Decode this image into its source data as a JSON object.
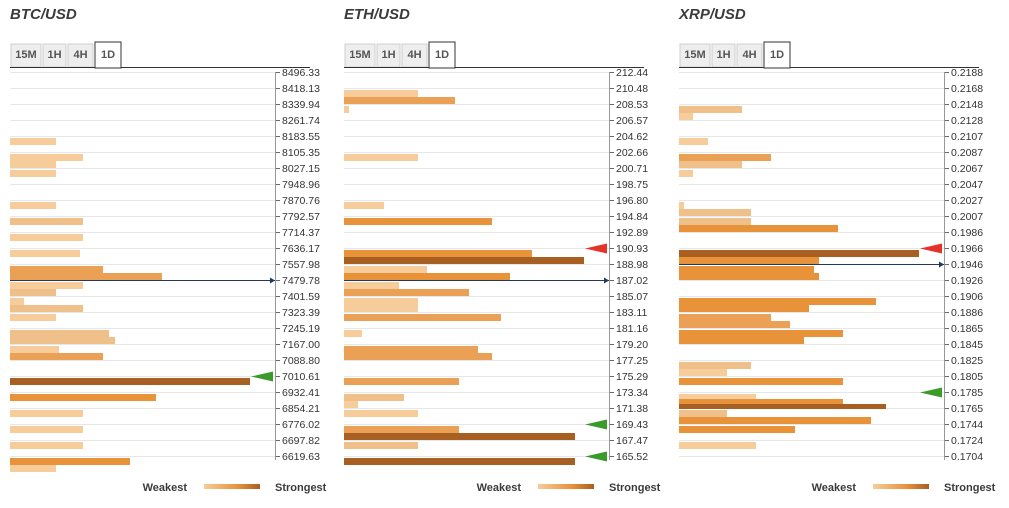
{
  "colors": {
    "weak": "#f5cc9a",
    "light": "#efc08a",
    "medium": "#eaa055",
    "strong": "#e8923a",
    "strongest": "#a85f22",
    "separator": "#e7e7e7",
    "price_line": "#1f3a5c",
    "red_marker": "#e5332a",
    "green_marker": "#3a9a2a"
  },
  "legend": {
    "weakest": "Weakest",
    "strongest": "Strongest"
  },
  "chart_data": [
    {
      "type": "bar",
      "title": "BTC/USD",
      "timeframes": [
        "15M",
        "1H",
        "4H",
        "1D"
      ],
      "active_timeframe": "1D",
      "levels": [
        "8496.33",
        "8418.13",
        "8339.94",
        "8261.74",
        "8183.55",
        "8105.35",
        "8027.15",
        "7948.96",
        "7870.76",
        "7792.57",
        "7714.37",
        "7636.17",
        "7557.98",
        "7479.78",
        "7401.59",
        "7323.39",
        "7245.19",
        "7167.00",
        "7088.80",
        "7010.61",
        "6932.41",
        "6854.21",
        "6776.02",
        "6697.82",
        "6619.63"
      ],
      "current_price_level": "7479.78",
      "markers": [
        {
          "level": "7010.61",
          "color": "green"
        }
      ],
      "bars": [
        {
          "level": "8183.55",
          "value": 46,
          "s": 1
        },
        {
          "level": "8105.35",
          "value": 73,
          "s": 1
        },
        {
          "level": "8105.35",
          "value": 46,
          "s": 1
        },
        {
          "level": "8027.15",
          "value": 46,
          "s": 1
        },
        {
          "level": "7870.76",
          "value": 46,
          "s": 1
        },
        {
          "level": "7792.57",
          "value": 73,
          "s": 2
        },
        {
          "level": "7714.37",
          "value": 73,
          "s": 1
        },
        {
          "level": "7636.17",
          "value": 70,
          "s": 1
        },
        {
          "level": "7557.98",
          "value": 93,
          "s": 3
        },
        {
          "level": "7557.98",
          "value": 152,
          "s": 3
        },
        {
          "level": "7479.78",
          "value": 73,
          "s": 1
        },
        {
          "level": "7479.78",
          "value": 46,
          "s": 2
        },
        {
          "level": "7401.59",
          "value": 14,
          "s": 1
        },
        {
          "level": "7401.59",
          "value": 73,
          "s": 2
        },
        {
          "level": "7323.39",
          "value": 46,
          "s": 1
        },
        {
          "level": "7245.19",
          "value": 99,
          "s": 2
        },
        {
          "level": "7245.19",
          "value": 105,
          "s": 2
        },
        {
          "level": "7167.00",
          "value": 49,
          "s": 1
        },
        {
          "level": "7167.00",
          "value": 93,
          "s": 3
        },
        {
          "level": "7010.61",
          "value": 240,
          "s": 5
        },
        {
          "level": "6932.41",
          "value": 146,
          "s": 4
        },
        {
          "level": "6854.21",
          "value": 73,
          "s": 1
        },
        {
          "level": "6776.02",
          "value": 73,
          "s": 1
        },
        {
          "level": "6697.82",
          "value": 73,
          "s": 1
        },
        {
          "level": "6619.63",
          "value": 120,
          "s": 4
        },
        {
          "level": "6619.63",
          "value": 46,
          "s": 1
        }
      ]
    },
    {
      "type": "bar",
      "title": "ETH/USD",
      "timeframes": [
        "15M",
        "1H",
        "4H",
        "1D"
      ],
      "active_timeframe": "1D",
      "levels": [
        "212.44",
        "210.48",
        "208.53",
        "206.57",
        "204.62",
        "202.66",
        "200.71",
        "198.75",
        "196.80",
        "194.84",
        "192.89",
        "190.93",
        "188.98",
        "187.02",
        "185.07",
        "183.11",
        "181.16",
        "179.20",
        "177.25",
        "175.29",
        "173.34",
        "171.38",
        "169.43",
        "167.47",
        "165.52"
      ],
      "current_price_level": "187.02",
      "markers": [
        {
          "level": "190.93",
          "color": "red"
        },
        {
          "level": "169.43",
          "color": "green"
        },
        {
          "level": "165.52",
          "color": "green"
        }
      ],
      "bars": [
        {
          "level": "210.48",
          "value": 74,
          "s": 1
        },
        {
          "level": "210.48",
          "value": 111,
          "s": 3
        },
        {
          "level": "208.53",
          "value": 5,
          "s": 1
        },
        {
          "level": "202.66",
          "value": 74,
          "s": 1
        },
        {
          "level": "196.80",
          "value": 40,
          "s": 1
        },
        {
          "level": "194.84",
          "value": 148,
          "s": 4
        },
        {
          "level": "190.93",
          "value": 188,
          "s": 4
        },
        {
          "level": "190.93",
          "value": 240,
          "s": 5
        },
        {
          "level": "188.98",
          "value": 83,
          "s": 1
        },
        {
          "level": "188.98",
          "value": 166,
          "s": 4
        },
        {
          "level": "187.02",
          "value": 55,
          "s": 1
        },
        {
          "level": "187.02",
          "value": 125,
          "s": 3
        },
        {
          "level": "185.07",
          "value": 74,
          "s": 1
        },
        {
          "level": "185.07",
          "value": 74,
          "s": 1
        },
        {
          "level": "183.11",
          "value": 157,
          "s": 3
        },
        {
          "level": "181.16",
          "value": 18,
          "s": 1
        },
        {
          "level": "179.20",
          "value": 134,
          "s": 3
        },
        {
          "level": "179.20",
          "value": 148,
          "s": 3
        },
        {
          "level": "175.29",
          "value": 115,
          "s": 3
        },
        {
          "level": "173.34",
          "value": 60,
          "s": 2
        },
        {
          "level": "173.34",
          "value": 14,
          "s": 1
        },
        {
          "level": "171.38",
          "value": 74,
          "s": 1
        },
        {
          "level": "169.43",
          "value": 115,
          "s": 3
        },
        {
          "level": "169.43",
          "value": 231,
          "s": 5
        },
        {
          "level": "167.47",
          "value": 74,
          "s": 2
        },
        {
          "level": "165.52",
          "value": 231,
          "s": 5
        }
      ]
    },
    {
      "type": "bar",
      "title": "XRP/USD",
      "timeframes": [
        "15M",
        "1H",
        "4H",
        "1D"
      ],
      "active_timeframe": "1D",
      "levels": [
        "0.2188",
        "0.2168",
        "0.2148",
        "0.2128",
        "0.2107",
        "0.2087",
        "0.2067",
        "0.2047",
        "0.2027",
        "0.2007",
        "0.1986",
        "0.1966",
        "0.1946",
        "0.1926",
        "0.1906",
        "0.1886",
        "0.1865",
        "0.1845",
        "0.1825",
        "0.1805",
        "0.1785",
        "0.1765",
        "0.1744",
        "0.1724",
        "0.1704"
      ],
      "current_price_level": "0.1946",
      "markers": [
        {
          "level": "0.1966",
          "color": "red"
        },
        {
          "level": "0.1785",
          "color": "green"
        }
      ],
      "bars": [
        {
          "level": "0.2148",
          "value": 63,
          "s": 2
        },
        {
          "level": "0.2148",
          "value": 14,
          "s": 1
        },
        {
          "level": "0.2107",
          "value": 29,
          "s": 1
        },
        {
          "level": "0.2087",
          "value": 92,
          "s": 3
        },
        {
          "level": "0.2087",
          "value": 63,
          "s": 2
        },
        {
          "level": "0.2067",
          "value": 14,
          "s": 1
        },
        {
          "level": "0.2027",
          "value": 5,
          "s": 1
        },
        {
          "level": "0.2027",
          "value": 72,
          "s": 2
        },
        {
          "level": "0.2007",
          "value": 72,
          "s": 2
        },
        {
          "level": "0.2007",
          "value": 159,
          "s": 4
        },
        {
          "level": "0.1966",
          "value": 240,
          "s": 5
        },
        {
          "level": "0.1966",
          "value": 140,
          "s": 4
        },
        {
          "level": "0.1946",
          "value": 135,
          "s": 4
        },
        {
          "level": "0.1946",
          "value": 140,
          "s": 4
        },
        {
          "level": "0.1906",
          "value": 197,
          "s": 4
        },
        {
          "level": "0.1906",
          "value": 130,
          "s": 4
        },
        {
          "level": "0.1886",
          "value": 92,
          "s": 3
        },
        {
          "level": "0.1886",
          "value": 111,
          "s": 3
        },
        {
          "level": "0.1865",
          "value": 164,
          "s": 4
        },
        {
          "level": "0.1865",
          "value": 125,
          "s": 4
        },
        {
          "level": "0.1825",
          "value": 72,
          "s": 2
        },
        {
          "level": "0.1825",
          "value": 48,
          "s": 1
        },
        {
          "level": "0.1805",
          "value": 164,
          "s": 4
        },
        {
          "level": "0.1785",
          "value": 77,
          "s": 1
        },
        {
          "level": "0.1785",
          "value": 164,
          "s": 4
        },
        {
          "level": "0.1785",
          "value": 207,
          "s": 5
        },
        {
          "level": "0.1765",
          "value": 48,
          "s": 2
        },
        {
          "level": "0.1765",
          "value": 192,
          "s": 4
        },
        {
          "level": "0.1744",
          "value": 116,
          "s": 4
        },
        {
          "level": "0.1724",
          "value": 77,
          "s": 1
        }
      ]
    }
  ]
}
